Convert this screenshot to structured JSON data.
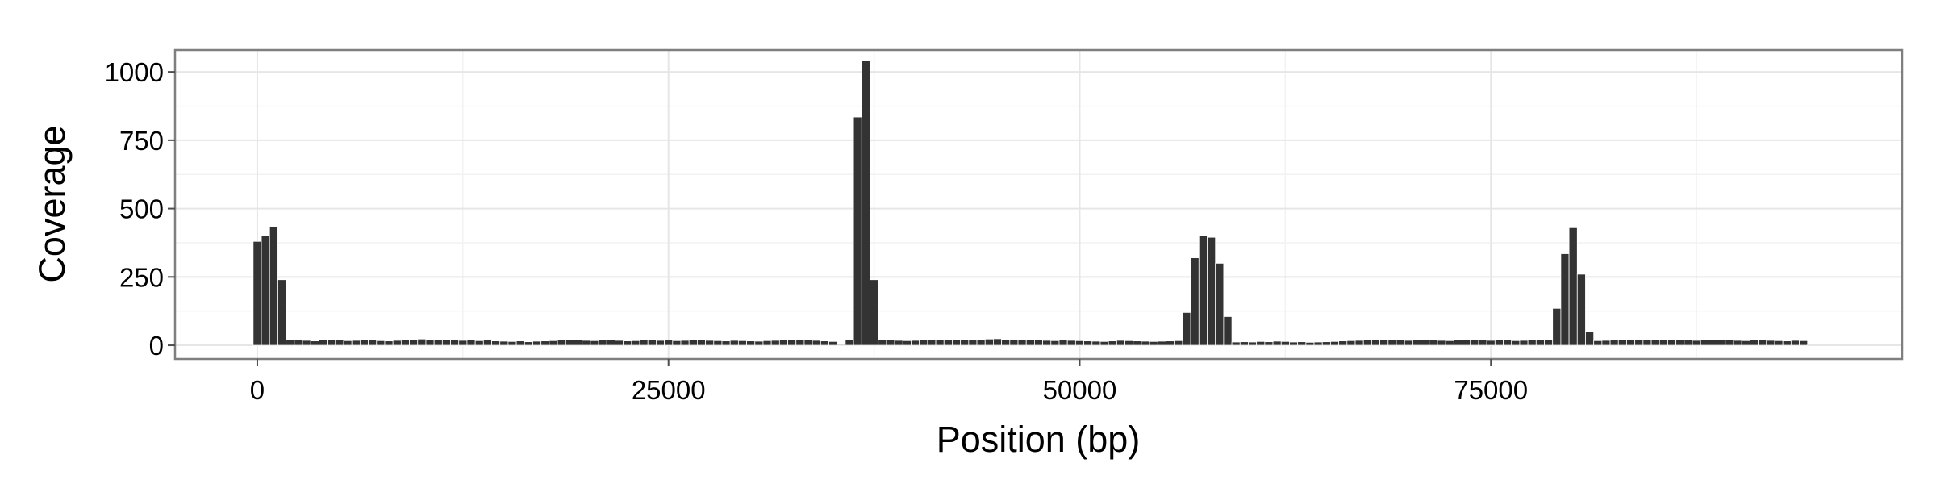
{
  "chart_data": {
    "type": "bar",
    "xlabel": "Position (bp)",
    "ylabel": "Coverage",
    "xlim": [
      -5000,
      100000
    ],
    "ylim": [
      -50,
      1080
    ],
    "x_ticks": [
      0,
      25000,
      50000,
      75000
    ],
    "x_tick_labels": [
      "0",
      "25000",
      "50000",
      "75000"
    ],
    "y_ticks": [
      0,
      250,
      500,
      750,
      1000
    ],
    "y_tick_labels": [
      "0",
      "250",
      "500",
      "750",
      "1000"
    ],
    "grid": true,
    "bin_width": 500,
    "bar_color": "#333333",
    "x": [
      0,
      500,
      1000,
      1500,
      2000,
      2500,
      3000,
      3500,
      4000,
      4500,
      5000,
      5500,
      6000,
      6500,
      7000,
      7500,
      8000,
      8500,
      9000,
      9500,
      10000,
      10500,
      11000,
      11500,
      12000,
      12500,
      13000,
      13500,
      14000,
      14500,
      15000,
      15500,
      16000,
      16500,
      17000,
      17500,
      18000,
      18500,
      19000,
      19500,
      20000,
      20500,
      21000,
      21500,
      22000,
      22500,
      23000,
      23500,
      24000,
      24500,
      25000,
      25500,
      26000,
      26500,
      27000,
      27500,
      28000,
      28500,
      29000,
      29500,
      30000,
      30500,
      31000,
      31500,
      32000,
      32500,
      33000,
      33500,
      34000,
      34500,
      35000,
      35500,
      36000,
      36500,
      37000,
      37500,
      38000,
      38500,
      39000,
      39500,
      40000,
      40500,
      41000,
      41500,
      42000,
      42500,
      43000,
      43500,
      44000,
      44500,
      45000,
      45500,
      46000,
      46500,
      47000,
      47500,
      48000,
      48500,
      49000,
      49500,
      50000,
      50500,
      51000,
      51500,
      52000,
      52500,
      53000,
      53500,
      54000,
      54500,
      55000,
      55500,
      56000,
      56500,
      57000,
      57500,
      58000,
      58500,
      59000,
      59500,
      60000,
      60500,
      61000,
      61500,
      62000,
      62500,
      63000,
      63500,
      64000,
      64500,
      65000,
      65500,
      66000,
      66500,
      67000,
      67500,
      68000,
      68500,
      69000,
      69500,
      70000,
      70500,
      71000,
      71500,
      72000,
      72500,
      73000,
      73500,
      74000,
      74500,
      75000,
      75500,
      76000,
      76500,
      77000,
      77500,
      78000,
      78500,
      79000,
      79500,
      80000,
      80500,
      81000,
      81500,
      82000,
      82500,
      83000,
      83500,
      84000,
      84500,
      85000,
      85500,
      86000,
      86500,
      87000,
      87500,
      88000,
      88500,
      89000,
      89500,
      90000,
      90500,
      91000,
      91500,
      92000,
      92500,
      93000,
      93500,
      94000
    ],
    "values": [
      380,
      400,
      435,
      240,
      20,
      20,
      18,
      16,
      20,
      20,
      19,
      17,
      18,
      20,
      19,
      17,
      16,
      18,
      20,
      22,
      23,
      19,
      21,
      20,
      19,
      18,
      20,
      17,
      19,
      16,
      15,
      14,
      16,
      13,
      15,
      16,
      17,
      19,
      20,
      21,
      18,
      17,
      19,
      20,
      18,
      16,
      17,
      20,
      19,
      18,
      19,
      17,
      18,
      20,
      19,
      18,
      17,
      16,
      18,
      17,
      16,
      15,
      17,
      18,
      19,
      20,
      21,
      20,
      18,
      16,
      14,
      3,
      22,
      835,
      1040,
      240,
      20,
      19,
      18,
      17,
      18,
      19,
      20,
      21,
      19,
      22,
      20,
      19,
      21,
      23,
      24,
      22,
      20,
      21,
      19,
      20,
      18,
      17,
      19,
      18,
      17,
      16,
      15,
      14,
      16,
      18,
      17,
      16,
      15,
      14,
      15,
      16,
      17,
      120,
      320,
      400,
      395,
      300,
      105,
      12,
      13,
      12,
      14,
      13,
      15,
      14,
      12,
      13,
      11,
      12,
      13,
      14,
      16,
      17,
      18,
      19,
      20,
      21,
      20,
      19,
      18,
      20,
      21,
      19,
      18,
      17,
      19,
      20,
      21,
      19,
      18,
      20,
      19,
      17,
      18,
      20,
      19,
      21,
      135,
      335,
      430,
      260,
      50,
      17,
      18,
      19,
      20,
      21,
      22,
      21,
      20,
      19,
      21,
      20,
      19,
      18,
      20,
      19,
      21,
      20,
      18,
      17,
      19,
      20,
      18,
      17,
      16,
      18,
      17
    ]
  }
}
